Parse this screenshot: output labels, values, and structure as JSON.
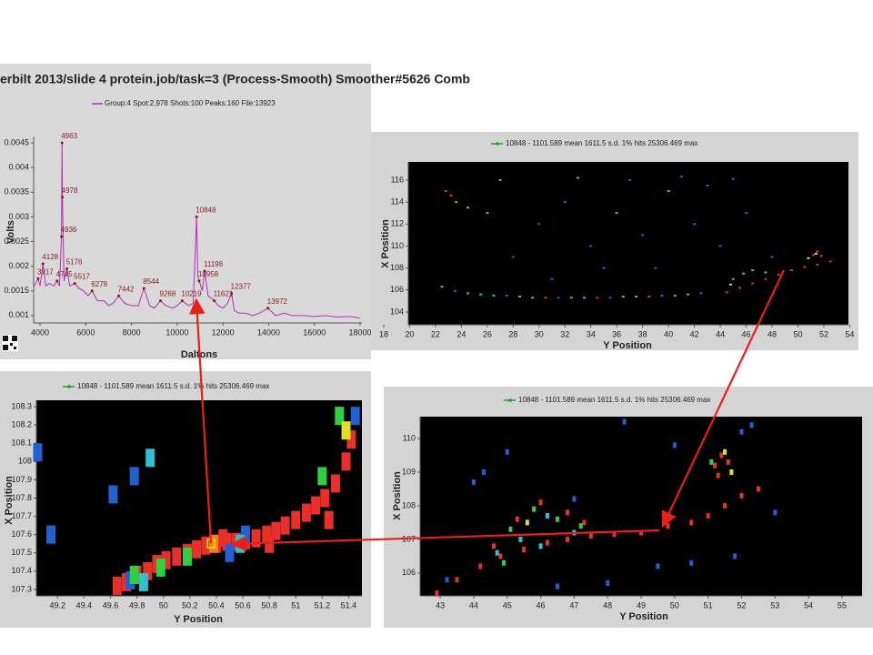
{
  "chart_data": [
    {
      "type": "line",
      "title": "erbilt 2013/slide 4 protein.job/task=3 (Process-Smooth) Smoother#5626 Comb",
      "xlabel": "Daltons",
      "ylabel": "Volts",
      "xlim": [
        3720,
        18080
      ],
      "ylim": [
        0.00085,
        0.00463
      ],
      "xticks": [
        4000,
        6000,
        8000,
        10000,
        12000,
        14000,
        16000,
        18000
      ],
      "yticks": [
        0.001,
        0.0015,
        0.002,
        0.0025,
        0.003,
        0.0035,
        0.004,
        0.0045
      ],
      "x": [
        3750,
        3917,
        4000,
        4128,
        4250,
        4400,
        4600,
        4745,
        4850,
        4936,
        4963,
        4978,
        5050,
        5176,
        5300,
        5517,
        5700,
        5900,
        6100,
        6278,
        6500,
        6800,
        7000,
        7200,
        7442,
        7700,
        8000,
        8300,
        8544,
        8800,
        9000,
        9268,
        9500,
        9800,
        10000,
        10219,
        10500,
        10700,
        10848,
        10900,
        10958,
        11100,
        11198,
        11350,
        11500,
        11621,
        11800,
        12000,
        12200,
        12377,
        12500,
        12700,
        13000,
        13300,
        13600,
        13972,
        14300,
        14700,
        15000,
        15500,
        16000,
        16500,
        17000,
        17500,
        18000
      ],
      "series": [
        {
          "name": "Group:4 Spot:2,978 Shots:100 Peaks:160 File:13923",
          "color": "#b030b0",
          "values": [
            0.0016,
            0.00175,
            0.0016,
            0.00205,
            0.0016,
            0.00165,
            0.0016,
            0.0017,
            0.0016,
            0.0026,
            0.0045,
            0.0034,
            0.0017,
            0.00195,
            0.0016,
            0.00165,
            0.00155,
            0.0015,
            0.0014,
            0.0015,
            0.0013,
            0.0013,
            0.0012,
            0.00125,
            0.0014,
            0.00125,
            0.0012,
            0.0012,
            0.00155,
            0.0012,
            0.00115,
            0.0013,
            0.0012,
            0.00115,
            0.0012,
            0.0013,
            0.0012,
            0.00125,
            0.003,
            0.0018,
            0.0017,
            0.0015,
            0.0019,
            0.0014,
            0.00135,
            0.0013,
            0.0012,
            0.00115,
            0.00125,
            0.00145,
            0.0011,
            0.00105,
            0.00105,
            0.001,
            0.00105,
            0.00115,
            0.001,
            0.00105,
            0.001,
            0.001,
            0.00098,
            0.001,
            0.00097,
            0.00098,
            0.00095
          ]
        }
      ],
      "peaks": {
        "color": "#8b1a1a",
        "x": [
          3917,
          4128,
          4745,
          4936,
          4963,
          4978,
          5176,
          5517,
          6278,
          7442,
          8544,
          9268,
          10219,
          10848,
          10958,
          11198,
          11621,
          12377,
          13972
        ],
        "values": [
          0.00175,
          0.00205,
          0.0017,
          0.0026,
          0.0045,
          0.0034,
          0.00195,
          0.00165,
          0.0015,
          0.0014,
          0.00155,
          0.0013,
          0.0013,
          0.003,
          0.0017,
          0.0019,
          0.0013,
          0.00145,
          0.00115
        ]
      }
    },
    {
      "type": "scatter",
      "legend": "10848 - 1101.589 mean 1611.5 s.d. 1% hits 25306.469 max",
      "legend_color": "#20a020",
      "xlabel": "Y Position",
      "ylabel": "X Position",
      "plot_color": "#000000",
      "xlim": [
        19.9,
        53.9
      ],
      "ylim": [
        102.84,
        117.65
      ],
      "xticks": [
        18,
        20,
        22,
        24,
        26,
        28,
        30,
        32,
        34,
        36,
        38,
        40,
        42,
        44,
        46,
        48,
        50,
        52,
        54
      ],
      "yticks": [
        104,
        106,
        108,
        110,
        112,
        114,
        116
      ],
      "series": [
        {
          "color": "#e8302a",
          "x": [
            22.8,
            23.2,
            44.5,
            45.5,
            46.5,
            47.5,
            48.5,
            49.5,
            50.5,
            51.5,
            52.5,
            51.2,
            51.5,
            51.8,
            30.5,
            34.5,
            38.5
          ],
          "values": [
            115,
            114.6,
            105.8,
            106.2,
            106.6,
            107,
            107.4,
            107.8,
            108.1,
            108.3,
            108.6,
            109.2,
            109.5,
            109.1,
            105.3,
            105.3,
            105.4
          ]
        },
        {
          "color": "#30d040",
          "x": [
            24.5,
            26.5,
            28.5,
            32.5,
            36.5,
            40.5,
            45,
            46.5,
            23.6
          ],
          "values": [
            105.7,
            105.5,
            105.4,
            105.3,
            105.4,
            105.5,
            107,
            107.8,
            114
          ]
        },
        {
          "color": "#30c0d0",
          "x": [
            22.5,
            25.5,
            29.5,
            33.5,
            37.5,
            41.5,
            45.8,
            47.5,
            24.5,
            26,
            36,
            40,
            27,
            33
          ],
          "values": [
            106.3,
            105.6,
            105.3,
            105.3,
            105.4,
            105.6,
            107.5,
            107.6,
            113.5,
            113,
            113,
            115,
            116,
            116.2
          ]
        },
        {
          "color": "#2060d0",
          "x": [
            30,
            32,
            34,
            38,
            42,
            44,
            46,
            48,
            35,
            28,
            31,
            39,
            43,
            37,
            41,
            45,
            27.5,
            31.5,
            35.5,
            39.5,
            42.5,
            23.5
          ],
          "values": [
            112,
            114,
            110,
            111,
            112,
            110,
            113,
            109,
            108,
            109,
            107,
            108,
            115.5,
            116,
            116.3,
            116.1,
            105.5,
            105.3,
            105.3,
            105.5,
            105.7,
            105.9
          ]
        },
        {
          "color": "#e0e020",
          "x": [
            51.4,
            50.8,
            44.8
          ],
          "values": [
            109.3,
            108.9,
            106.5
          ]
        }
      ]
    },
    {
      "type": "scatter",
      "legend": "10848 - 1101.589 mean 1611.5 s.d. 1% hits 25306.469 max",
      "legend_color": "#20a020",
      "xlabel": "Y Position",
      "ylabel": "X Position",
      "plot_color": "#000000",
      "xlim": [
        49.04,
        51.5
      ],
      "ylim": [
        107.265,
        108.335
      ],
      "xticks": [
        49.2,
        49.4,
        49.6,
        49.8,
        50,
        50.2,
        50.4,
        50.6,
        50.8,
        51,
        51.2,
        51.4
      ],
      "yticks": [
        107.3,
        107.4,
        107.5,
        107.6,
        107.7,
        107.8,
        107.9,
        108,
        108.1,
        108.2,
        108.3
      ],
      "series": [
        {
          "color": "#e8302a",
          "x": [
            49.65,
            49.72,
            49.8,
            49.88,
            49.95,
            50.02,
            50.1,
            50.18,
            50.25,
            50.32,
            50.4,
            50.48,
            50.55,
            50.62,
            50.7,
            50.78,
            50.85,
            50.92,
            51.0,
            51.08,
            51.15,
            51.22,
            51.3,
            51.38,
            51.42,
            50.45,
            50.8,
            51.25
          ],
          "values": [
            107.32,
            107.34,
            107.38,
            107.4,
            107.44,
            107.46,
            107.48,
            107.5,
            107.52,
            107.54,
            107.55,
            107.56,
            107.56,
            107.57,
            107.58,
            107.6,
            107.62,
            107.65,
            107.68,
            107.72,
            107.76,
            107.8,
            107.88,
            108.0,
            108.12,
            107.58,
            107.55,
            107.68
          ]
        },
        {
          "color": "#2060d0",
          "x": [
            49.05,
            49.15,
            49.62,
            49.78,
            49.75,
            50.62,
            50.5,
            51.45
          ],
          "values": [
            108.05,
            107.6,
            107.82,
            107.92,
            107.35,
            107.6,
            107.5,
            108.25
          ]
        },
        {
          "color": "#30c0d0",
          "x": [
            49.9,
            49.85,
            50.58
          ],
          "values": [
            108.02,
            107.34,
            107.55
          ]
        },
        {
          "color": "#30d040",
          "x": [
            49.78,
            49.98,
            50.18,
            51.2,
            51.33
          ],
          "values": [
            107.38,
            107.42,
            107.48,
            107.92,
            108.25
          ]
        },
        {
          "color": "#e0e020",
          "x": [
            51.38
          ],
          "values": [
            108.17
          ]
        },
        {
          "color": "#f08020",
          "x": [
            50.38
          ],
          "values": [
            107.55
          ]
        }
      ]
    },
    {
      "type": "scatter",
      "legend": "10848 - 1101.589 mean 1611.5 s.d. 1% hits 25306.469 max",
      "legend_color": "#20a020",
      "xlabel": "Y Position",
      "ylabel": "X Position",
      "plot_color": "#000000",
      "xlim": [
        42.4,
        55.6
      ],
      "ylim": [
        105.32,
        110.65
      ],
      "xticks": [
        43,
        44,
        45,
        46,
        47,
        48,
        49,
        50,
        51,
        52,
        53,
        54,
        55
      ],
      "yticks": [
        106,
        107,
        108,
        109,
        110
      ],
      "series": [
        {
          "color": "#e8302a",
          "x": [
            42.9,
            43.5,
            44.2,
            44.8,
            45.5,
            46.2,
            46.8,
            47.5,
            48.2,
            49,
            49.8,
            50.5,
            51,
            51.5,
            52,
            52.5,
            44.6,
            45.3,
            46,
            46.8,
            47.3,
            51.2,
            51.4,
            51.6,
            51.3
          ],
          "values": [
            105.4,
            105.8,
            106.2,
            106.5,
            106.7,
            106.9,
            107,
            107.1,
            107.15,
            107.2,
            107.4,
            107.5,
            107.7,
            108,
            108.3,
            108.5,
            106.8,
            107.6,
            108.1,
            107.8,
            107.5,
            109.2,
            109.5,
            109.3,
            108.9
          ]
        },
        {
          "color": "#30d040",
          "x": [
            45.1,
            45.8,
            46.5,
            47.2,
            44.9,
            51.1
          ],
          "values": [
            107.3,
            107.9,
            107.6,
            107.4,
            106.3,
            109.3
          ]
        },
        {
          "color": "#30c0d0",
          "x": [
            45.4,
            46.2,
            47,
            46,
            44.7
          ],
          "values": [
            107.0,
            107.7,
            107.2,
            106.8,
            106.6
          ]
        },
        {
          "color": "#e0e020",
          "x": [
            51.7,
            51.5,
            45.6
          ],
          "values": [
            109.0,
            109.6,
            107.5
          ]
        },
        {
          "color": "#2060d0",
          "x": [
            43.2,
            44,
            45,
            47,
            48.5,
            50,
            50.5,
            52,
            52.3,
            49.5,
            48,
            53,
            46.5,
            44.3,
            51.8
          ],
          "values": [
            105.8,
            108.7,
            109.6,
            108.2,
            110.5,
            109.8,
            106.3,
            110.2,
            110.4,
            106.2,
            105.7,
            107.8,
            105.6,
            109,
            106.5
          ]
        }
      ]
    }
  ]
}
